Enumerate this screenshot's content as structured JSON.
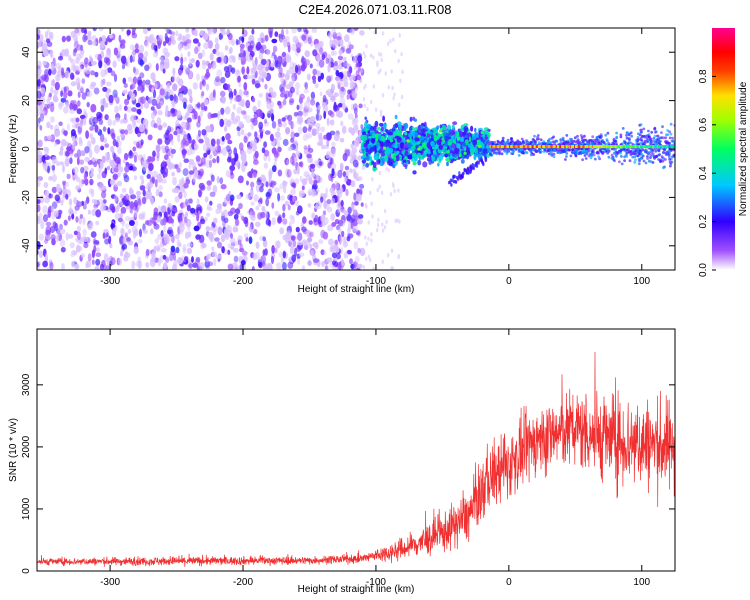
{
  "title": "C2E4.2026.071.03.11.R08",
  "chart_data": [
    {
      "type": "heatmap",
      "name": "spectrogram",
      "xlabel": "Height of straight line (km)",
      "ylabel": "Frequency (Hz)",
      "xlim": [
        -355,
        125
      ],
      "ylim": [
        -50,
        50
      ],
      "xticks": [
        -300,
        -200,
        -100,
        0,
        100
      ],
      "yticks": [
        -40,
        -20,
        0,
        20,
        40
      ],
      "colorbar": {
        "label": "Normalized spectral amplitude",
        "range": [
          0.0,
          1.0
        ],
        "ticks": [
          0.0,
          0.2,
          0.4,
          0.6,
          0.8
        ],
        "colors": [
          "#ffffff",
          "#7b00ff",
          "#0000ff",
          "#00ffff",
          "#00ff00",
          "#ffff00",
          "#ff0000",
          "#ff00ff"
        ]
      },
      "regions": [
        {
          "x_from": -355,
          "x_to": -110,
          "description": "noise",
          "freq_spread": 50,
          "amplitude": 0.05
        },
        {
          "x_from": -110,
          "x_to": -15,
          "center_freq": 2,
          "freq_spread": 8,
          "amplitude": 0.35
        },
        {
          "x_from": -15,
          "x_to": 125,
          "center_freq": 1,
          "freq_spread": 2,
          "amplitude": 0.85
        }
      ]
    },
    {
      "type": "line",
      "name": "snr",
      "xlabel": "Height of straight line (km)",
      "ylabel": "SNR (10 * v/v)",
      "xlim": [
        -355,
        125
      ],
      "ylim": [
        0,
        3900
      ],
      "xticks": [
        -300,
        -200,
        -100,
        0,
        100
      ],
      "yticks": [
        0,
        1000,
        2000,
        3000
      ],
      "color": "#f03030",
      "envelope": [
        {
          "x": -355,
          "mean": 150,
          "spread": 60
        },
        {
          "x": -250,
          "mean": 160,
          "spread": 80
        },
        {
          "x": -150,
          "mean": 170,
          "spread": 70
        },
        {
          "x": -110,
          "mean": 200,
          "spread": 80
        },
        {
          "x": -80,
          "mean": 350,
          "spread": 200
        },
        {
          "x": -50,
          "mean": 600,
          "spread": 350
        },
        {
          "x": -30,
          "mean": 900,
          "spread": 450
        },
        {
          "x": -15,
          "mean": 1500,
          "spread": 600
        },
        {
          "x": 0,
          "mean": 1700,
          "spread": 600
        },
        {
          "x": 20,
          "mean": 2100,
          "spread": 600
        },
        {
          "x": 50,
          "mean": 2300,
          "spread": 700
        },
        {
          "x": 80,
          "mean": 2100,
          "spread": 800
        },
        {
          "x": 125,
          "mean": 2000,
          "spread": 800
        }
      ]
    }
  ]
}
